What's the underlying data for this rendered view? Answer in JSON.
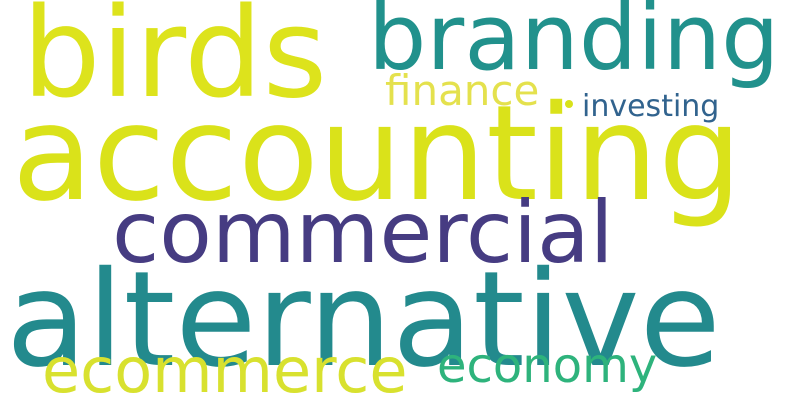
{
  "words": [
    {
      "text": "birds",
      "color": "#dde31c"
    },
    {
      "text": "branding",
      "color": "#21918c"
    },
    {
      "text": "finance",
      "color": "#e4e14d"
    },
    {
      "text": "investing",
      "color": "#31638e"
    },
    {
      "text": "accounting",
      "color": "#dae21a"
    },
    {
      "text": "commercial",
      "color": "#463c82"
    },
    {
      "text": "alternative",
      "color": "#238a8d"
    },
    {
      "text": "ecommerce",
      "color": "#d8e12f"
    },
    {
      "text": "economy",
      "color": "#2eb37c"
    }
  ],
  "dot_color": "#d8e21a"
}
